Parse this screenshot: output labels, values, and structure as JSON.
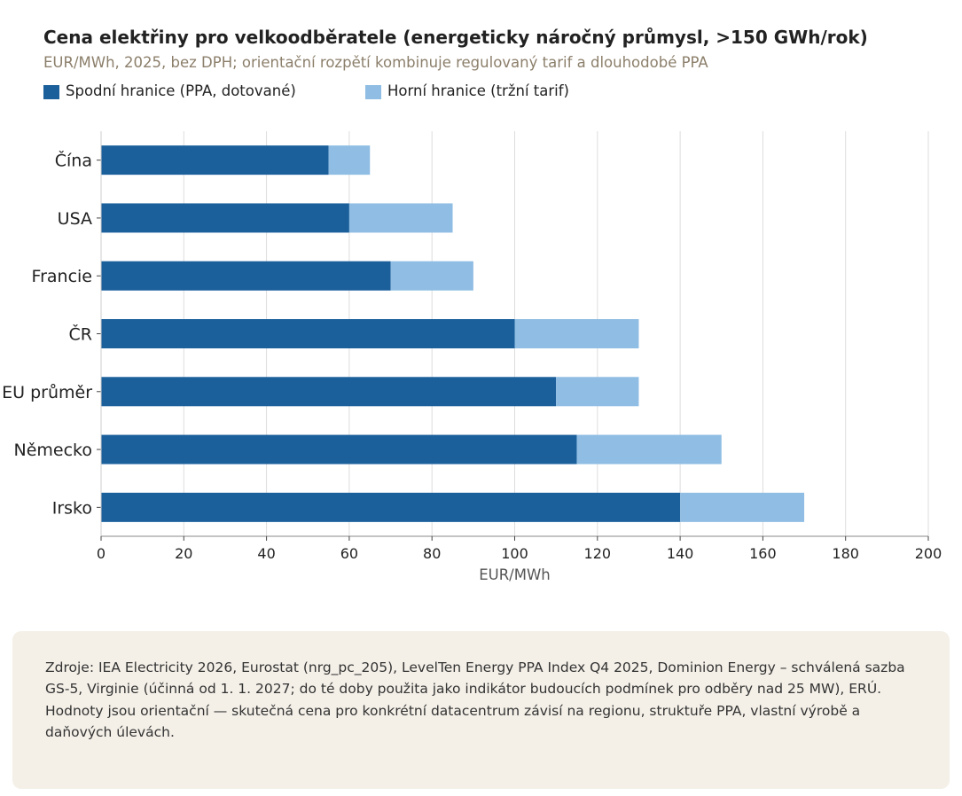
{
  "title": "Cena elektřiny pro velkoodběratele (energeticky náročný průmysl, >150 GWh/rok)",
  "subtitle": "EUR/MWh, 2025, bez DPH; orientační rozpětí kombinuje regulovaný tarif a dlouhodobé PPA",
  "legend": [
    {
      "label": "Spodní hranice (PPA, dotované)",
      "color": "#1b5f9b"
    },
    {
      "label": "Horní hranice (tržní tarif)",
      "color": "#8fbde3"
    }
  ],
  "chart_data": {
    "type": "bar",
    "orientation": "horizontal",
    "stacked_range": true,
    "categories": [
      "Čína",
      "USA",
      "Francie",
      "ČR",
      "EU průměr",
      "Německo",
      "Irsko"
    ],
    "series": [
      {
        "name": "Spodní hranice (PPA, dotované)",
        "values": [
          55,
          60,
          70,
          100,
          110,
          115,
          140
        ],
        "color": "#1b5f9b"
      },
      {
        "name": "Horní hranice (tržní tarif)",
        "values": [
          65,
          85,
          90,
          130,
          130,
          150,
          170
        ],
        "color": "#8fbde3"
      }
    ],
    "xlabel": "EUR/MWh",
    "xlim": [
      0,
      200
    ],
    "xticks": [
      0,
      20,
      40,
      60,
      80,
      100,
      120,
      140,
      160,
      180,
      200
    ],
    "grid": "vertical",
    "legend_position": "top-left"
  },
  "notes": [
    "Zdroje: IEA Electricity 2026, Eurostat (nrg_pc_205), LevelTen Energy PPA Index Q4 2025, Dominion Energy – schválená sazba GS-5, Virginie (účinná od 1. 1. 2027; do té doby použita jako indikátor budoucích podmínek pro odběry nad 25 MW), ERÚ.",
    "Hodnoty jsou orientační — skutečná cena pro konkrétní datacentrum závisí na regionu, struktuře PPA, vlastní výrobě a daňových úlevách."
  ]
}
